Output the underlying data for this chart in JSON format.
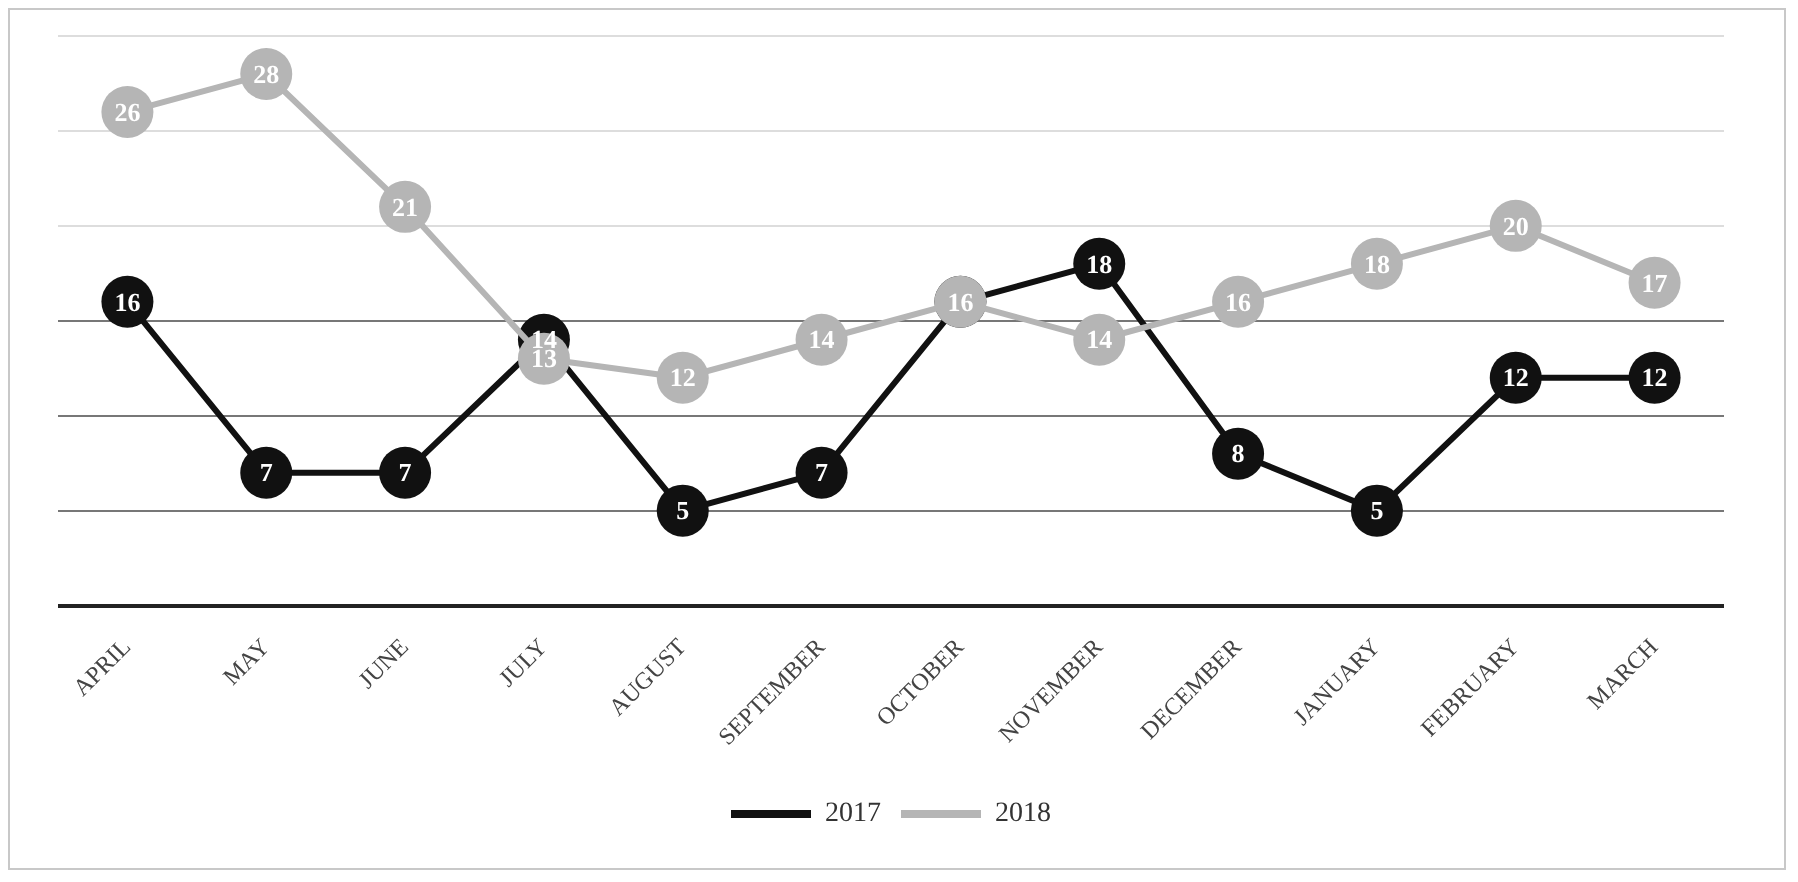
{
  "chart_data": {
    "type": "line",
    "categories": [
      "APRIL",
      "MAY",
      "JUNE",
      "JULY",
      "AUGUST",
      "SEPTEMBER",
      "OCTOBER",
      "NOVEMBER",
      "DECEMBER",
      "JANUARY",
      "FEBRUARY",
      "MARCH"
    ],
    "series": [
      {
        "name": "2017",
        "color": "#111111",
        "values": [
          16,
          7,
          7,
          14,
          5,
          7,
          16,
          18,
          8,
          5,
          12,
          12
        ],
        "value_labels": [
          "16",
          "7",
          "7",
          "14",
          "5",
          "7",
          null,
          "18",
          "8",
          "5",
          "12",
          "12"
        ]
      },
      {
        "name": "2018",
        "color": "#b5b5b5",
        "values": [
          26,
          28,
          21,
          13,
          12,
          14,
          16,
          14,
          16,
          18,
          20,
          17
        ],
        "value_labels": [
          "26",
          "28",
          "21",
          "13",
          "12",
          "14",
          "16",
          "14",
          "16",
          "18",
          "20",
          "17"
        ]
      }
    ],
    "ylim": [
      0,
      30
    ],
    "yticks": [
      {
        "value": 0,
        "label": null
      },
      {
        "value": 5,
        "label": null
      },
      {
        "value": 10,
        "label": null
      },
      {
        "value": 15,
        "label": null
      },
      {
        "value": 20,
        "label": null
      },
      {
        "value": 25,
        "label": null
      },
      {
        "value": 30,
        "label": null
      }
    ],
    "tick_labels": "x",
    "grid": "y",
    "legend": "bottom",
    "marker": "circle",
    "line_style": "solid"
  }
}
